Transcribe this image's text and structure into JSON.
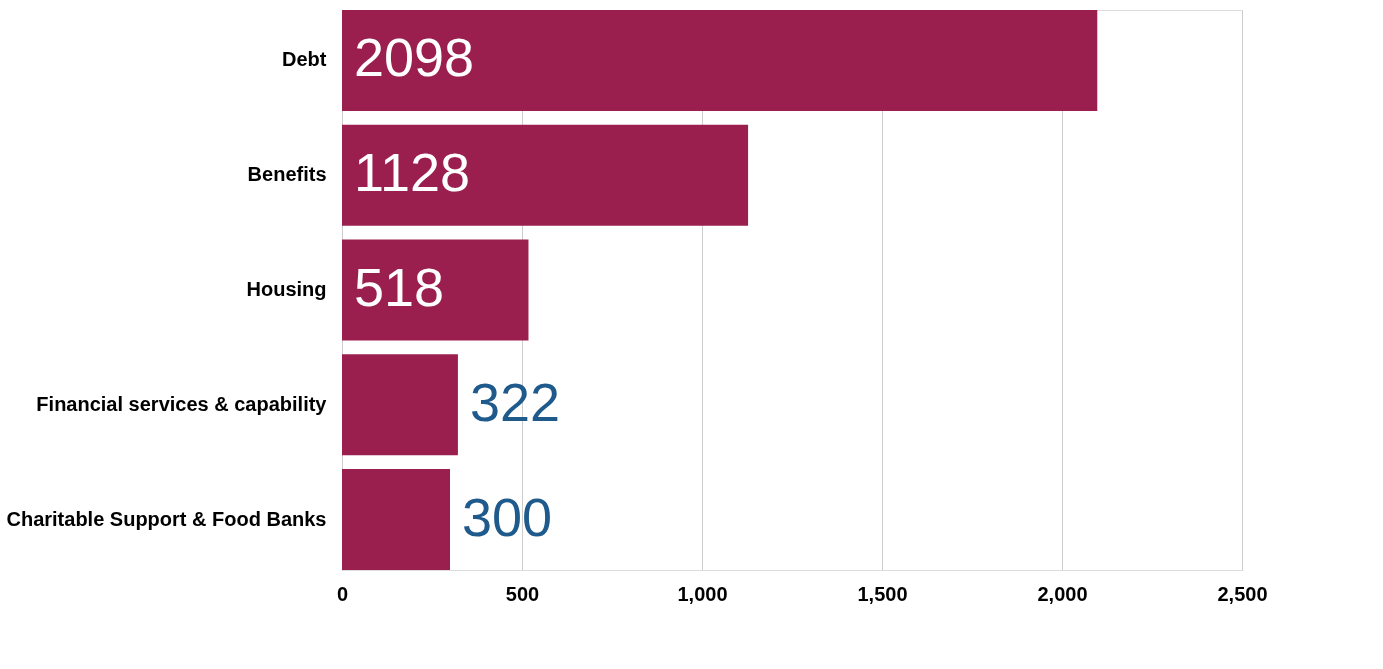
{
  "chart_data": {
    "type": "bar",
    "orientation": "horizontal",
    "categories": [
      "Debt",
      "Benefits",
      "Housing",
      "Financial services & capability",
      "Charitable Support & Food Banks"
    ],
    "values": [
      2098,
      1128,
      518,
      322,
      300
    ],
    "color": "#9b1f4e",
    "xlim": [
      0,
      2500
    ],
    "xticks": [
      0,
      500,
      {
        "value": 1000,
        "label": "1,000"
      },
      {
        "value": 1500,
        "label": "1,500"
      },
      {
        "value": 2000,
        "label": "2,000"
      },
      {
        "value": 2500,
        "label": "2,500"
      }
    ],
    "grid": "x",
    "data_labels": true
  }
}
